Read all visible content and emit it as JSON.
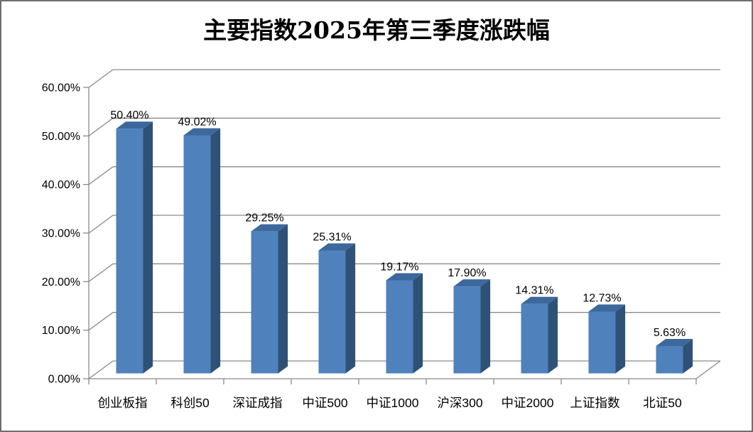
{
  "chart_data": {
    "type": "bar",
    "style": "3d-clustered-column",
    "title": "主要指数2025年第三季度涨跌幅",
    "categories": [
      "创业板指",
      "科创50",
      "深证成指",
      "中证500",
      "中证1000",
      "沪深300",
      "中证2000",
      "上证指数",
      "北证50"
    ],
    "values": [
      50.4,
      49.02,
      29.25,
      25.31,
      19.17,
      17.9,
      14.31,
      12.73,
      5.63
    ],
    "data_labels": [
      "50.40%",
      "49.02%",
      "29.25%",
      "25.31%",
      "19.17%",
      "17.90%",
      "14.31%",
      "12.73%",
      "5.63%"
    ],
    "y_ticks": [
      "0.00%",
      "10.00%",
      "20.00%",
      "30.00%",
      "40.00%",
      "50.00%",
      "60.00%"
    ],
    "ylim": [
      0,
      60
    ],
    "y_tick_step": 10,
    "xlabel": "",
    "ylabel": "",
    "legend": "none",
    "grid": true,
    "colors": {
      "bar_front": "#4F81BD",
      "bar_top": "#3C689C",
      "bar_side": "#2F5176",
      "gridline": "#8A8A8A",
      "axis": "#8A8A8A",
      "text": "#000000",
      "background": "#FFFFFF",
      "frame_border": "#6E6E6E"
    }
  }
}
